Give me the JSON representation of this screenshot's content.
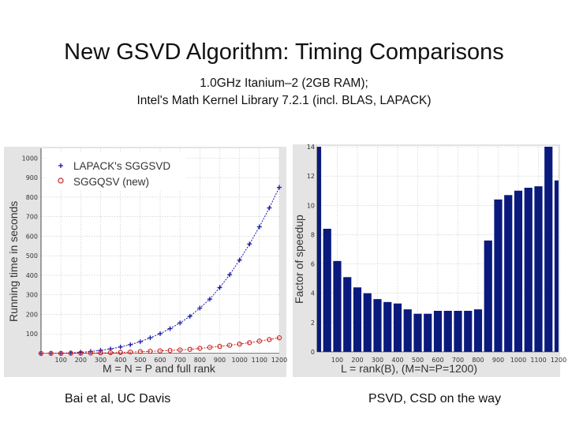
{
  "title": "New GSVD Algorithm: Timing Comparisons",
  "subtitle_line1": "1.0GHz Itanium–2  (2GB RAM);",
  "subtitle_line2": "Intel's Math Kernel Library 7.2.1 (incl. BLAS, LAPACK)",
  "footer_left": "Bai et al, UC Davis",
  "footer_right": "PSVD, CSD on the way",
  "colors": {
    "lapack": "#1a1aa8",
    "new": "#cc2020",
    "bars": "#0a1a7c"
  },
  "chart_data": [
    {
      "type": "line",
      "title": "",
      "xlabel": "M = N = P and full rank",
      "ylabel": "Running time in seconds",
      "xlim": [
        0,
        1200
      ],
      "ylim": [
        0,
        1050
      ],
      "xticks": [
        100,
        200,
        300,
        400,
        500,
        600,
        700,
        800,
        900,
        1000,
        1100,
        1200
      ],
      "xtick_labels": [
        "100",
        "200",
        "300",
        "400",
        "500",
        "600",
        "700",
        "800",
        "900",
        "1000",
        "1100",
        "1200"
      ],
      "yticks": [
        100,
        200,
        300,
        400,
        500,
        600,
        700,
        800,
        900,
        1000
      ],
      "ytick_labels": [
        "100",
        "200",
        "300",
        "400",
        "500",
        "600",
        "700",
        "800",
        "900",
        "1000"
      ],
      "legend_position": "top-left",
      "x": [
        0,
        50,
        100,
        150,
        200,
        250,
        300,
        350,
        400,
        450,
        500,
        550,
        600,
        650,
        700,
        750,
        800,
        850,
        900,
        950,
        1000,
        1050,
        1100,
        1150,
        1200
      ],
      "series": [
        {
          "name": "LAPACK's SGGSVD",
          "marker": "plus",
          "values": [
            0,
            0.5,
            1,
            3,
            6,
            10,
            16,
            23,
            33,
            45,
            60,
            80,
            101,
            127,
            156,
            190,
            232,
            278,
            337,
            403,
            478,
            560,
            648,
            745,
            850
          ]
        },
        {
          "name": "SGGQSV (new)",
          "marker": "circle",
          "values": [
            0,
            0.2,
            0.5,
            1,
            1.5,
            2,
            3,
            4,
            5,
            7,
            9,
            11,
            13,
            15,
            18,
            21,
            26,
            31,
            36,
            42,
            48,
            55,
            63,
            71,
            80
          ]
        }
      ]
    },
    {
      "type": "bar",
      "title": "",
      "xlabel": "L = rank(B), (M=N=P=1200)",
      "ylabel": "Factor of speedup",
      "xlim": [
        0,
        1200
      ],
      "ylim": [
        0,
        14
      ],
      "xticks": [
        100,
        200,
        300,
        400,
        500,
        600,
        700,
        800,
        900,
        1000,
        1100,
        1200
      ],
      "xtick_labels": [
        "100",
        "200",
        "300",
        "400",
        "500",
        "600",
        "700",
        "800",
        "900",
        "1000",
        "1100",
        "1200"
      ],
      "yticks": [
        0,
        2,
        4,
        6,
        8,
        10,
        12,
        14
      ],
      "ytick_labels": [
        "0",
        "2",
        "4",
        "6",
        "8",
        "10",
        "12",
        "14"
      ],
      "categories": [
        0,
        50,
        100,
        150,
        200,
        250,
        300,
        350,
        400,
        450,
        500,
        550,
        600,
        650,
        700,
        750,
        800,
        850,
        900,
        950,
        1000,
        1050,
        1100,
        1150,
        1200
      ],
      "values": [
        14,
        8.4,
        6.2,
        5.1,
        4.4,
        4.0,
        3.6,
        3.4,
        3.3,
        2.9,
        2.6,
        2.6,
        2.8,
        2.8,
        2.8,
        2.8,
        2.9,
        7.6,
        10.4,
        10.7,
        11.0,
        11.2,
        11.3,
        14.5,
        11.7
      ]
    }
  ]
}
